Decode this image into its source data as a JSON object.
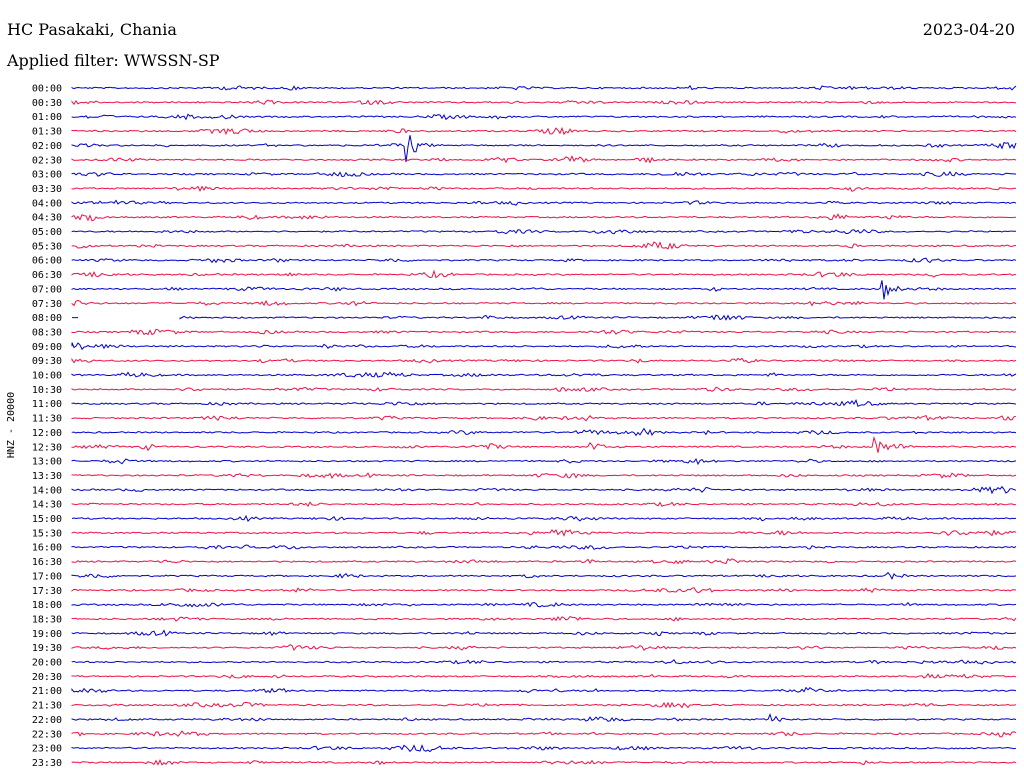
{
  "header": {
    "station": "HC Pasakaki, Chania",
    "date": "2023-04-20",
    "filter": "Applied filter: WWSSN-SP"
  },
  "colors": {
    "even_trace": "#0000cc",
    "odd_trace": "#ee1144"
  },
  "chart_data": {
    "type": "line",
    "title": "HC Pasakaki, Chania",
    "subtitle": "Applied filter: WWSSN-SP",
    "ylabel": "HNZ - 20000",
    "grid": false,
    "legend": "none",
    "trace_labels": [
      "00:00",
      "00:30",
      "01:00",
      "01:30",
      "02:00",
      "02:30",
      "03:00",
      "03:30",
      "04:00",
      "04:30",
      "05:00",
      "05:30",
      "06:00",
      "06:30",
      "07:00",
      "07:30",
      "08:00",
      "08:30",
      "09:00",
      "09:30",
      "10:00",
      "10:30",
      "11:00",
      "11:30",
      "12:00",
      "12:30",
      "13:00",
      "13:30",
      "14:00",
      "14:30",
      "15:00",
      "15:30",
      "16:00",
      "16:30",
      "17:00",
      "17:30",
      "18:00",
      "18:30",
      "19:00",
      "19:30",
      "20:00",
      "20:30",
      "21:00",
      "21:30",
      "22:00",
      "22:30",
      "23:00",
      "23:30"
    ],
    "events": [
      {
        "trace": 4,
        "t": 0.355,
        "amp": 1.0
      },
      {
        "trace": 7,
        "t": 0.82,
        "amp": 0.3
      },
      {
        "trace": 14,
        "t": 0.86,
        "amp": 0.7
      },
      {
        "trace": 15,
        "t": 0.0,
        "amp": 0.3
      },
      {
        "trace": 18,
        "t": 0.0,
        "amp": 0.5
      },
      {
        "trace": 25,
        "t": 0.85,
        "amp": 0.6
      },
      {
        "trace": 25,
        "t": 0.55,
        "amp": 0.4
      },
      {
        "trace": 31,
        "t": 0.51,
        "amp": 0.5
      },
      {
        "trace": 44,
        "t": 0.74,
        "amp": 0.3
      }
    ]
  }
}
